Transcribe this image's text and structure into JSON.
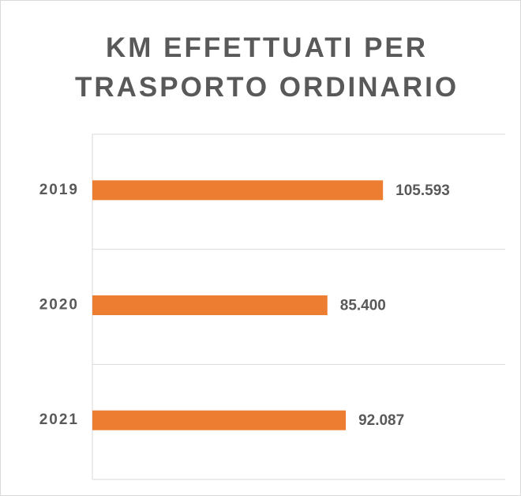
{
  "chart_data": {
    "type": "bar",
    "orientation": "horizontal",
    "title": "KM EFFETTUATI PER TRASPORTO ORDINARIO",
    "categories": [
      "2019",
      "2020",
      "2021"
    ],
    "values": [
      105593,
      85400,
      92087
    ],
    "value_labels": [
      "105.593",
      "85.400",
      "92.087"
    ],
    "color": "#ed7d31",
    "xlim": [
      0,
      150000
    ]
  }
}
